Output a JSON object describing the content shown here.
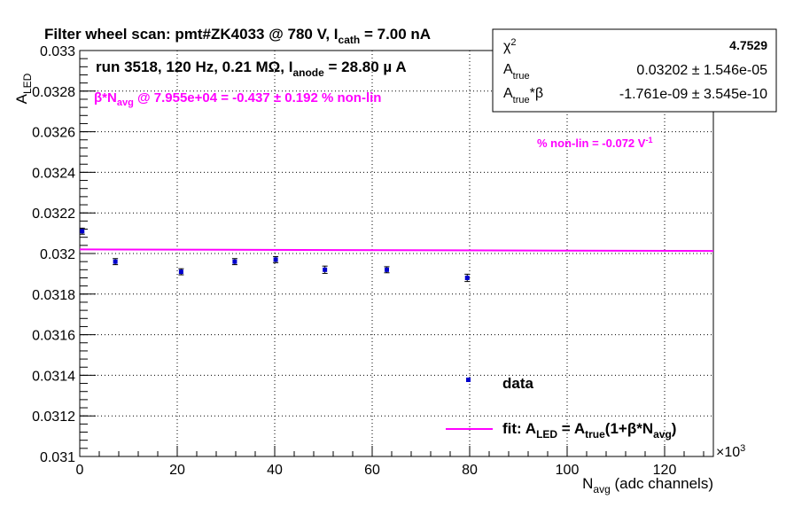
{
  "chart_data": {
    "type": "scatter",
    "title": {
      "prefix": "Filter wheel scan: pmt#ZK4033 @   780 V, I",
      "sub": "cath",
      "suffix": " = 7.00 nA"
    },
    "run_label": {
      "prefix": "run 3518, 120 Hz, 0.21 MΩ, I",
      "sub": "anode",
      "suffix": " = 28.80 µ A"
    },
    "nonlin_label": {
      "p1": "β*N",
      "sub": "avg",
      "p2": " @ 7.955e+04 = -0.437 ± 0.192 % non-lin"
    },
    "nonlin_per_volt": {
      "text": "% non-lin = -0.072 V",
      "sup": "-1"
    },
    "ylabel": {
      "main": "A",
      "sub": "LED"
    },
    "xlabel": {
      "main": "N",
      "sub": "avg",
      "rest": " (adc channels)"
    },
    "x_multiplier": "×10",
    "x_multiplier_exp": "3",
    "xlim": [
      0,
      130000
    ],
    "ylim": [
      0.031,
      0.033
    ],
    "x_ticks": [
      0,
      20000,
      40000,
      60000,
      80000,
      100000,
      120000
    ],
    "x_tick_labels": [
      "0",
      "20",
      "40",
      "60",
      "80",
      "100",
      "120"
    ],
    "y_ticks": [
      0.031,
      0.0312,
      0.0314,
      0.0316,
      0.0318,
      0.032,
      0.0322,
      0.0324,
      0.0326,
      0.0328,
      0.033
    ],
    "y_tick_labels": [
      "0.031",
      "0.0312",
      "0.0314",
      "0.0316",
      "0.0318",
      "0.032",
      "0.0322",
      "0.0324",
      "0.0326",
      "0.0328",
      "0.033"
    ],
    "grid": true,
    "series": [
      {
        "name": "data",
        "color": "#0000cc",
        "points": [
          {
            "x": 500,
            "y": 0.03211,
            "err": 1.5e-05
          },
          {
            "x": 7300,
            "y": 0.03196,
            "err": 1.5e-05
          },
          {
            "x": 20800,
            "y": 0.03191,
            "err": 1.5e-05
          },
          {
            "x": 31800,
            "y": 0.03196,
            "err": 1.5e-05
          },
          {
            "x": 40200,
            "y": 0.03197,
            "err": 1.5e-05
          },
          {
            "x": 50300,
            "y": 0.03192,
            "err": 1.8e-05
          },
          {
            "x": 63000,
            "y": 0.03192,
            "err": 1.5e-05
          },
          {
            "x": 79500,
            "y": 0.03188,
            "err": 1.8e-05
          }
        ]
      }
    ],
    "fit": {
      "color": "#ff00ff",
      "A_true": 0.03202,
      "beta": -1.761e-09,
      "x_range": [
        0,
        130000
      ]
    },
    "legend": {
      "position": "bottom-right",
      "data_label": "data",
      "fit_label": {
        "p1": "fit: A",
        "s1": "LED",
        "p2": " = A",
        "s2": "true",
        "p3": "(1+β*N",
        "s3": "avg",
        "p4": ")"
      }
    },
    "stats_box": {
      "position": "top-right",
      "chi2_label": "χ",
      "chi2_sup": "2",
      "chi2_value": "4.7529",
      "atrue_label": "A",
      "atrue_sub": "true",
      "atrue_value": "0.03202 ± 1.546e-05",
      "atrueb_label": "A",
      "atrueb_sub": "true",
      "atrueb_suffix": "*β",
      "atrueb_value": "-1.761e-09 ± 3.545e-10"
    }
  }
}
